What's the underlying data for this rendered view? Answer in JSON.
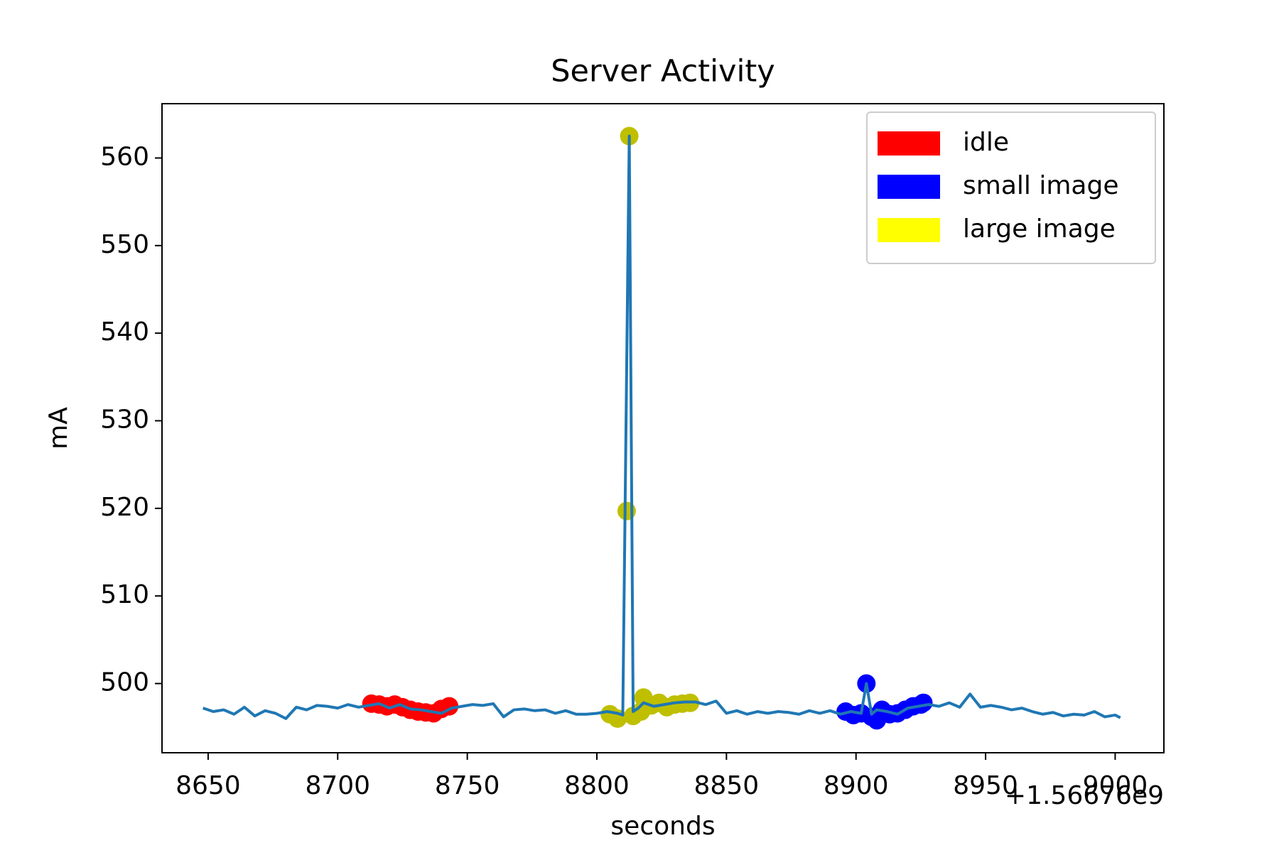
{
  "chart_data": {
    "type": "line",
    "title": "Server Activity",
    "x_label": "seconds",
    "y_label": "mA",
    "x_offset_label": "+1.56676e9",
    "xlim": [
      8632.2,
      9018.8
    ],
    "xticks": [
      8650,
      8700,
      8750,
      8800,
      8850,
      8900,
      8950,
      9000
    ],
    "ylim": [
      492.1,
      566.2
    ],
    "yticks": [
      500,
      510,
      520,
      530,
      540,
      550,
      560
    ],
    "grid": false,
    "legend_position": "upper right",
    "series": [
      {
        "type": "scatter",
        "name": "idle",
        "color": "#ff0000",
        "legend_color": "#ff0000",
        "x": [
          8713,
          8716,
          8719,
          8722,
          8725,
          8728,
          8731,
          8734,
          8737,
          8740,
          8743
        ],
        "values": [
          497.7,
          497.6,
          497.4,
          497.6,
          497.3,
          497.0,
          496.8,
          496.7,
          496.6,
          497.1,
          497.4
        ]
      },
      {
        "type": "scatter",
        "name": "small image",
        "color": "#0000ff",
        "legend_color": "#0000ff",
        "x": [
          8896,
          8899,
          8902,
          8904,
          8906,
          8908,
          8910,
          8913,
          8916,
          8919,
          8922,
          8925,
          8926
        ],
        "values": [
          496.8,
          496.4,
          496.6,
          500.0,
          496.2,
          495.8,
          497.0,
          496.5,
          496.6,
          497.0,
          497.4,
          497.6,
          497.8
        ]
      },
      {
        "type": "scatter",
        "name": "large image",
        "color": "#bfbf00",
        "legend_color": "#ffff00",
        "x": [
          8805,
          8808,
          8811.5,
          8812.5,
          8814,
          8817,
          8818,
          8821,
          8824,
          8827,
          8830,
          8833,
          8836
        ],
        "values": [
          496.5,
          496.0,
          519.7,
          562.5,
          496.3,
          496.8,
          498.4,
          497.5,
          497.8,
          497.3,
          497.6,
          497.7,
          497.8
        ]
      },
      {
        "type": "line",
        "color": "#1f77b4",
        "x": [
          8648,
          8652,
          8656,
          8660,
          8664,
          8668,
          8672,
          8676,
          8680,
          8684,
          8688,
          8692,
          8696,
          8700,
          8704,
          8708,
          8712,
          8716,
          8720,
          8724,
          8728,
          8732,
          8736,
          8740,
          8744,
          8748,
          8752,
          8756,
          8760,
          8764,
          8768,
          8772,
          8776,
          8780,
          8784,
          8788,
          8792,
          8796,
          8800,
          8804,
          8808,
          8810,
          8812.5,
          8814,
          8816,
          8818,
          8822,
          8826,
          8830,
          8834,
          8838,
          8842,
          8846,
          8850,
          8854,
          8858,
          8862,
          8866,
          8870,
          8874,
          8878,
          8882,
          8886,
          8890,
          8894,
          8898,
          8902,
          8904,
          8906,
          8908,
          8912,
          8916,
          8920,
          8924,
          8928,
          8932,
          8936,
          8940,
          8944,
          8948,
          8952,
          8956,
          8960,
          8964,
          8968,
          8972,
          8976,
          8980,
          8984,
          8988,
          8992,
          8996,
          9000,
          9002
        ],
        "values": [
          497.2,
          496.8,
          497.0,
          496.5,
          497.3,
          496.3,
          496.9,
          496.6,
          496.0,
          497.3,
          497.0,
          497.5,
          497.4,
          497.2,
          497.6,
          497.3,
          497.5,
          497.7,
          497.2,
          497.6,
          497.1,
          497.0,
          496.8,
          496.6,
          497.2,
          497.4,
          497.6,
          497.5,
          497.7,
          496.2,
          497.0,
          497.1,
          496.9,
          497.0,
          496.6,
          496.9,
          496.5,
          496.5,
          496.6,
          496.8,
          496.6,
          496.4,
          562.5,
          496.8,
          497.2,
          497.8,
          497.4,
          497.6,
          497.8,
          497.9,
          497.9,
          497.6,
          498.0,
          496.6,
          496.9,
          496.5,
          496.8,
          496.6,
          496.8,
          496.7,
          496.5,
          496.9,
          496.6,
          496.9,
          496.5,
          496.8,
          496.6,
          500.0,
          496.5,
          497.0,
          496.8,
          496.5,
          497.2,
          497.4,
          497.6,
          497.4,
          497.8,
          497.3,
          498.8,
          497.3,
          497.5,
          497.3,
          497.0,
          497.2,
          496.8,
          496.5,
          496.7,
          496.3,
          496.5,
          496.4,
          496.8,
          496.2,
          496.4,
          496.1
        ]
      }
    ]
  }
}
